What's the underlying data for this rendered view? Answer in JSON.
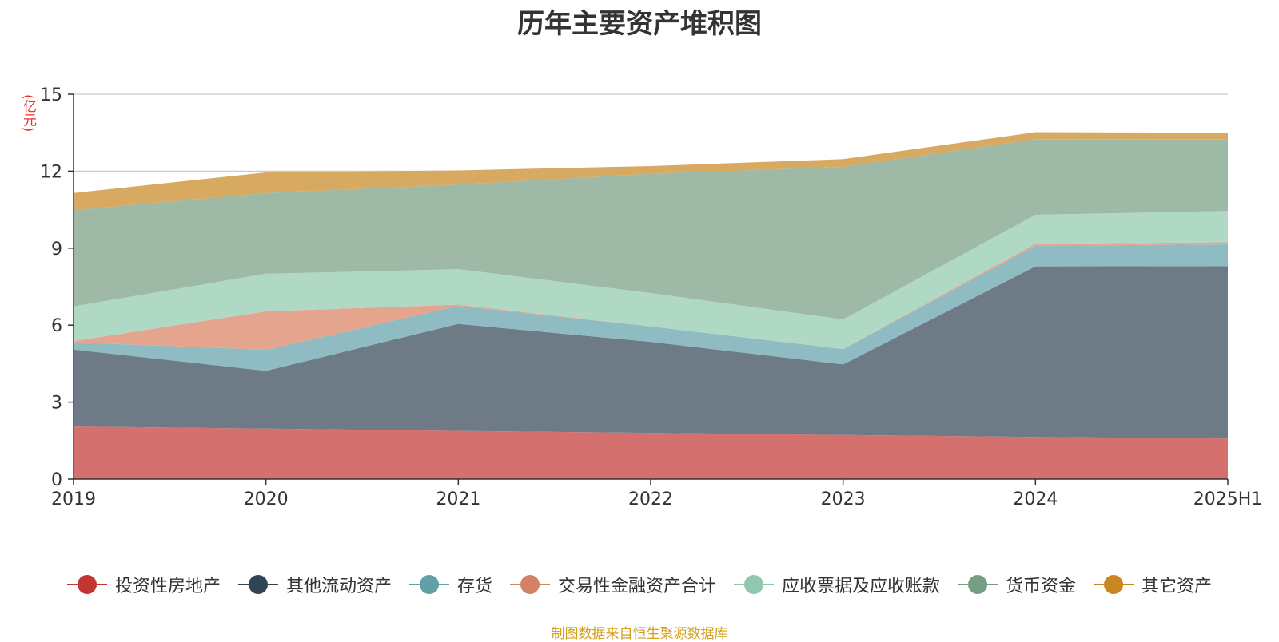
{
  "chart_data": {
    "type": "area",
    "stacked": true,
    "title": "历年主要资产堆积图",
    "ylabel": "(亿元)",
    "ylim": [
      0,
      15
    ],
    "yticks": [
      0,
      3,
      6,
      9,
      12,
      15
    ],
    "categories": [
      "2019",
      "2020",
      "2021",
      "2022",
      "2023",
      "2024",
      "2025H1"
    ],
    "grid": true,
    "legend_position": "bottom",
    "series": [
      {
        "name": "投资性房地产",
        "color": "#c23531",
        "fill": "#d4716e",
        "values": [
          2.05,
          1.97,
          1.88,
          1.8,
          1.72,
          1.64,
          1.58
        ]
      },
      {
        "name": "其他流动资产",
        "color": "#2f4554",
        "fill": "#6e7b86",
        "values": [
          3.0,
          2.25,
          4.17,
          3.55,
          2.75,
          6.65,
          6.72
        ]
      },
      {
        "name": "存货",
        "color": "#61a0a8",
        "fill": "#8fbbc2",
        "values": [
          0.28,
          0.82,
          0.7,
          0.6,
          0.6,
          0.8,
          0.85
        ]
      },
      {
        "name": "交易性金融资产合计",
        "color": "#d48265",
        "fill": "#e4a48e",
        "values": [
          0.05,
          1.5,
          0.05,
          0.0,
          0.0,
          0.08,
          0.08
        ]
      },
      {
        "name": "应收票据及应收账款",
        "color": "#91c7ae",
        "fill": "#b0d9c5",
        "values": [
          1.35,
          1.46,
          1.38,
          1.3,
          1.15,
          1.13,
          1.22
        ]
      },
      {
        "name": "货币资金",
        "color": "#749f83",
        "fill": "#9eb9a5",
        "values": [
          3.75,
          3.15,
          3.3,
          4.65,
          5.95,
          2.95,
          2.8
        ]
      },
      {
        "name": "其它资产",
        "color": "#ca8622",
        "fill": "#d8a961",
        "values": [
          0.67,
          0.8,
          0.55,
          0.3,
          0.3,
          0.27,
          0.25
        ]
      }
    ]
  },
  "source_note": "制图数据来自恒生聚源数据库"
}
